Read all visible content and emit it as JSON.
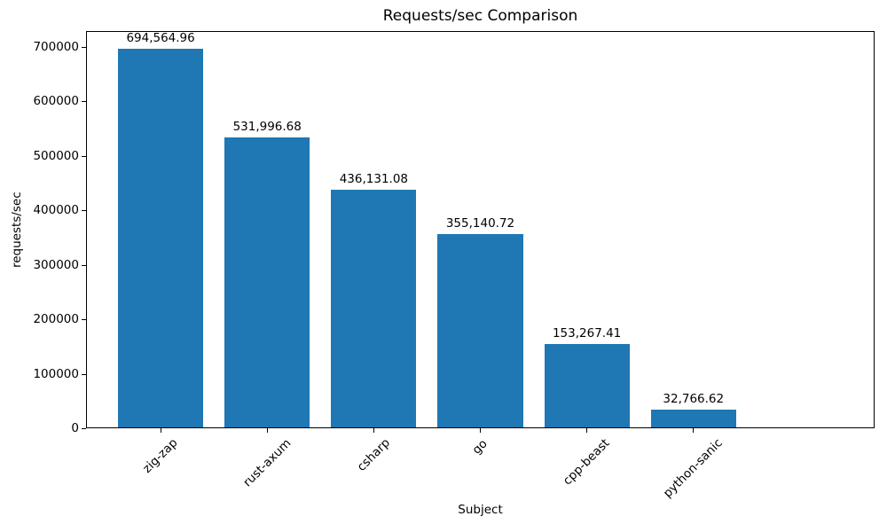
{
  "chart_data": {
    "type": "bar",
    "title": "Requests/sec Comparison",
    "xlabel": "Subject",
    "ylabel": "requests/sec",
    "categories": [
      "zig-zap",
      "rust-axum",
      "csharp",
      "go",
      "cpp-beast",
      "python-sanic"
    ],
    "values": [
      694564.96,
      531996.68,
      436131.08,
      355140.72,
      153267.41,
      32766.62
    ],
    "value_labels": [
      "694,564.96",
      "531,996.68",
      "436,131.08",
      "355,140.72",
      "153,267.41",
      "32,766.62"
    ],
    "yticks": [
      0,
      100000,
      200000,
      300000,
      400000,
      500000,
      600000,
      700000
    ],
    "ytick_labels": [
      "0",
      "100000",
      "200000",
      "300000",
      "400000",
      "500000",
      "600000",
      "700000"
    ],
    "ylim": [
      0,
      729293
    ],
    "bar_color": "#1f77b4",
    "x_tick_rotation": 45,
    "grid": false,
    "legend": null
  }
}
